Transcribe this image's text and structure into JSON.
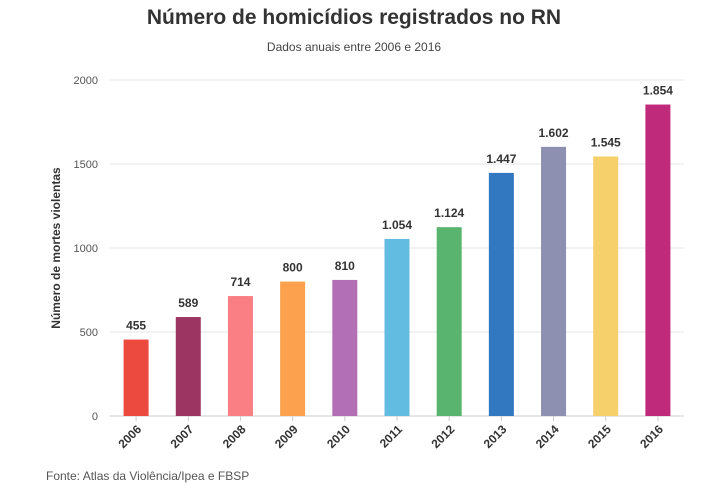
{
  "chart_data": {
    "type": "bar",
    "title": "Número de homicídios registrados no RN",
    "subtitle": "Dados anuais entre 2006 e 2016",
    "ylabel": "Número de mortes violentas",
    "xlabel": "",
    "ylim": [
      0,
      2000
    ],
    "yticks": [
      "0",
      "500",
      "1000",
      "1500",
      "2000"
    ],
    "grid": true,
    "categories": [
      "2006",
      "2007",
      "2008",
      "2009",
      "2010",
      "2011",
      "2012",
      "2013",
      "2014",
      "2015",
      "2016"
    ],
    "values": [
      455,
      589,
      714,
      800,
      810,
      1054,
      1124,
      1447,
      1602,
      1545,
      1854
    ],
    "data_labels": [
      "455",
      "589",
      "714",
      "800",
      "810",
      "1.054",
      "1.124",
      "1.447",
      "1.602",
      "1.545",
      "1.854"
    ],
    "colors": [
      "#ed4a3f",
      "#9c3562",
      "#f97f84",
      "#fca14e",
      "#b36fb6",
      "#62bce2",
      "#59b46f",
      "#3278c0",
      "#8d90b0",
      "#f6d06a",
      "#c02a7b"
    ]
  },
  "source": "Fonte: Atlas da Violência/Ipea e FBSP"
}
